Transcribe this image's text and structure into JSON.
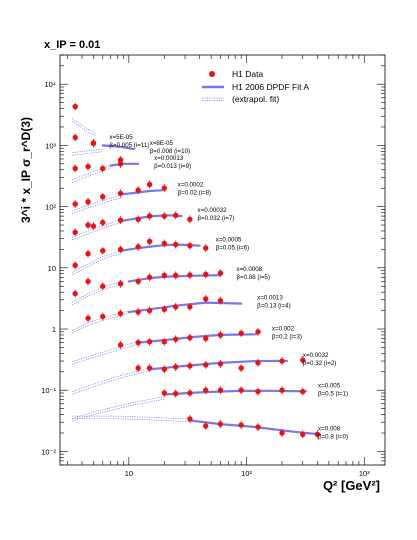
{
  "chart_data": {
    "type": "scatter",
    "title": "x_IP = 0.01",
    "xlabel": "Q² [GeV²]",
    "ylabel": "3^i * x_IP σ_r^D(3)",
    "xscale": "log",
    "yscale": "log",
    "xlim": [
      2.6,
      1500
    ],
    "ylim": [
      0.006,
      30000
    ],
    "x_tick_labels": [
      "10",
      "10²",
      "10³"
    ],
    "y_tick_labels": [
      "10⁻²",
      "10⁻¹",
      "1",
      "10",
      "10²",
      "10³",
      "10⁴"
    ],
    "legend": {
      "placement": "top-right",
      "entries": [
        "H1 Data",
        "H1 2006 DPDF Fit A",
        "(extrapol. fit)"
      ]
    },
    "colors": {
      "data": "#ee1111",
      "fit": "#7777ee"
    },
    "bins": [
      {
        "label_x": "x=5E-05",
        "label_b": "β=0.005 (i=11)",
        "points": [
          [
            3.5,
            4300
          ],
          [
            5,
            1100
          ]
        ],
        "fit": [],
        "extrap": [
          [
            3.3,
            2600
          ],
          [
            4.2,
            1900
          ],
          [
            5.2,
            1500
          ]
        ]
      },
      {
        "label_x": "x=8E-05",
        "label_b": "β=0.008 (i=10)",
        "points": [
          [
            3.5,
            1350
          ],
          [
            5,
            1080
          ],
          [
            8.5,
            580
          ]
        ],
        "fit": [
          [
            6,
            1000
          ],
          [
            8.5,
            950
          ],
          [
            11,
            870
          ]
        ],
        "extrap": [
          [
            3.3,
            720
          ],
          [
            4.5,
            780
          ],
          [
            6,
            830
          ]
        ]
      },
      {
        "label_x": "x=0.00013",
        "label_b": "β=0.013 (i=9)",
        "points": [
          [
            3.5,
            420
          ],
          [
            4.5,
            450
          ],
          [
            6,
            420
          ],
          [
            8.5,
            500
          ]
        ],
        "fit": [
          [
            7,
            470
          ],
          [
            9,
            500
          ],
          [
            12,
            500
          ]
        ],
        "extrap": [
          [
            3.3,
            260
          ],
          [
            4.5,
            330
          ],
          [
            6,
            400
          ],
          [
            7,
            450
          ]
        ]
      },
      {
        "label_x": "x=0.0002",
        "label_b": "β=0.02 (i=8)",
        "points": [
          [
            3.5,
            110
          ],
          [
            4.5,
            120
          ],
          [
            6,
            145
          ],
          [
            8.5,
            165
          ],
          [
            12,
            185
          ],
          [
            15,
            230
          ],
          [
            20,
            200
          ]
        ],
        "fit": [
          [
            9,
            160
          ],
          [
            12,
            170
          ],
          [
            15,
            180
          ],
          [
            19,
            185
          ]
        ],
        "extrap": [
          [
            3.3,
            80
          ],
          [
            4.5,
            100
          ],
          [
            6,
            120
          ],
          [
            9,
            150
          ]
        ]
      },
      {
        "label_x": "x=0.00032",
        "label_b": "β=0.032 (i=7)",
        "points": [
          [
            3.5,
            38
          ],
          [
            4.5,
            50
          ],
          [
            5,
            48
          ],
          [
            6,
            55
          ],
          [
            8.5,
            60
          ],
          [
            12,
            62
          ],
          [
            15,
            70
          ],
          [
            20,
            70
          ],
          [
            25,
            72
          ],
          [
            33,
            62
          ]
        ],
        "fit": [
          [
            8.5,
            58
          ],
          [
            12,
            65
          ],
          [
            16,
            70
          ],
          [
            22,
            72
          ],
          [
            28,
            70
          ]
        ],
        "extrap": [
          [
            3.3,
            30
          ],
          [
            4.5,
            38
          ],
          [
            6,
            46
          ],
          [
            8.5,
            58
          ]
        ]
      },
      {
        "label_x": "x=0.0005",
        "label_b": "β=0.05 (i=6)",
        "points": [
          [
            3.5,
            11
          ],
          [
            4.5,
            17
          ],
          [
            6,
            19
          ],
          [
            8.5,
            20
          ],
          [
            12,
            22
          ],
          [
            15,
            27
          ],
          [
            20,
            25
          ],
          [
            25,
            24
          ],
          [
            33,
            23
          ],
          [
            45,
            21
          ]
        ],
        "fit": [
          [
            8.5,
            19
          ],
          [
            12,
            21
          ],
          [
            18,
            23
          ],
          [
            25,
            24
          ],
          [
            40,
            23
          ]
        ],
        "extrap": [
          [
            3.3,
            8
          ],
          [
            4.5,
            11
          ],
          [
            6,
            14.5
          ],
          [
            8.5,
            18
          ]
        ]
      },
      {
        "label_x": "x=0.0008",
        "label_b": "β=0.08 (i=5)",
        "points": [
          [
            3.5,
            3.8
          ],
          [
            4.5,
            6
          ],
          [
            6,
            5
          ],
          [
            8.5,
            5.5
          ],
          [
            12,
            6
          ],
          [
            15,
            7
          ],
          [
            20,
            7.5
          ],
          [
            25,
            7.5
          ],
          [
            33,
            7.6
          ],
          [
            45,
            7.8
          ],
          [
            60,
            8.2
          ]
        ],
        "fit": [
          [
            10,
            6.0
          ],
          [
            15,
            6.8
          ],
          [
            22,
            7.2
          ],
          [
            35,
            7.4
          ],
          [
            60,
            7.6
          ]
        ],
        "extrap": [
          [
            3.3,
            2.6
          ],
          [
            4.5,
            3.6
          ],
          [
            6,
            4.6
          ],
          [
            8.5,
            5.6
          ]
        ]
      },
      {
        "label_x": "x=0.0013",
        "label_b": "β=0.13 (i=4)",
        "points": [
          [
            4.5,
            1.5
          ],
          [
            6,
            1.6
          ],
          [
            8.5,
            1.8
          ],
          [
            12,
            1.9
          ],
          [
            15,
            2.0
          ],
          [
            20,
            2.1
          ],
          [
            25,
            2.3
          ],
          [
            33,
            2.3
          ],
          [
            45,
            3.1
          ],
          [
            60,
            2.9
          ]
        ],
        "fit": [
          [
            10,
            1.9
          ],
          [
            15,
            2.1
          ],
          [
            25,
            2.4
          ],
          [
            45,
            2.7
          ],
          [
            90,
            2.6
          ]
        ],
        "extrap": [
          [
            3.3,
            0.9
          ],
          [
            4.5,
            1.2
          ],
          [
            6,
            1.45
          ],
          [
            10,
            1.9
          ]
        ]
      },
      {
        "label_x": "x=0.002",
        "label_b": "β=0.2 (i=3)",
        "points": [
          [
            8.5,
            0.55
          ],
          [
            12,
            0.6
          ],
          [
            15,
            0.62
          ],
          [
            20,
            0.62
          ],
          [
            25,
            0.68
          ],
          [
            33,
            0.72
          ],
          [
            45,
            0.7
          ],
          [
            60,
            0.8
          ],
          [
            90,
            0.85
          ],
          [
            125,
            0.9
          ]
        ],
        "fit": [
          [
            12,
            0.6
          ],
          [
            20,
            0.66
          ],
          [
            35,
            0.74
          ],
          [
            60,
            0.8
          ],
          [
            120,
            0.82
          ]
        ],
        "extrap": [
          [
            3.3,
            0.28
          ],
          [
            5,
            0.36
          ],
          [
            8,
            0.47
          ],
          [
            12,
            0.6
          ]
        ]
      },
      {
        "label_x": "x=0.0032",
        "label_b": "β=0.32 (i=2)",
        "points": [
          [
            12,
            0.23
          ],
          [
            15,
            0.23
          ],
          [
            20,
            0.22
          ],
          [
            25,
            0.24
          ],
          [
            33,
            0.25
          ],
          [
            45,
            0.26
          ],
          [
            60,
            0.27
          ],
          [
            90,
            0.23
          ],
          [
            125,
            0.28
          ],
          [
            200,
            0.3
          ],
          [
            300,
            0.31
          ]
        ],
        "fit": [
          [
            15,
            0.22
          ],
          [
            30,
            0.25
          ],
          [
            60,
            0.28
          ],
          [
            120,
            0.3
          ],
          [
            220,
            0.3
          ]
        ],
        "extrap": [
          [
            3.3,
            0.09
          ],
          [
            5,
            0.12
          ],
          [
            8,
            0.16
          ],
          [
            15,
            0.22
          ]
        ]
      },
      {
        "label_x": "x=0.005",
        "label_b": "β=0.5 (i=1)",
        "points": [
          [
            20,
            0.09
          ],
          [
            25,
            0.088
          ],
          [
            33,
            0.09
          ],
          [
            45,
            0.1
          ],
          [
            60,
            0.1
          ],
          [
            90,
            0.1
          ],
          [
            125,
            0.095
          ],
          [
            200,
            0.1
          ],
          [
            300,
            0.095
          ]
        ],
        "fit": [
          [
            20,
            0.085
          ],
          [
            40,
            0.092
          ],
          [
            80,
            0.097
          ],
          [
            150,
            0.098
          ],
          [
            320,
            0.096
          ]
        ],
        "extrap": [
          [
            3.3,
            0.033
          ],
          [
            5,
            0.042
          ],
          [
            10,
            0.058
          ],
          [
            20,
            0.075
          ]
        ]
      },
      {
        "label_x": "x=0.008",
        "label_b": "β=0.8 (i=0)",
        "points": [
          [
            33,
            0.034
          ],
          [
            45,
            0.026
          ],
          [
            60,
            0.028
          ],
          [
            90,
            0.027
          ],
          [
            125,
            0.025
          ],
          [
            200,
            0.02
          ],
          [
            300,
            0.019
          ],
          [
            400,
            0.019
          ]
        ],
        "fit": [
          [
            33,
            0.032
          ],
          [
            60,
            0.028
          ],
          [
            120,
            0.025
          ],
          [
            250,
            0.021
          ],
          [
            420,
            0.019
          ]
        ],
        "extrap": [
          [
            3.3,
            0.036
          ],
          [
            8,
            0.036
          ],
          [
            18,
            0.034
          ],
          [
            33,
            0.032
          ]
        ]
      }
    ]
  }
}
